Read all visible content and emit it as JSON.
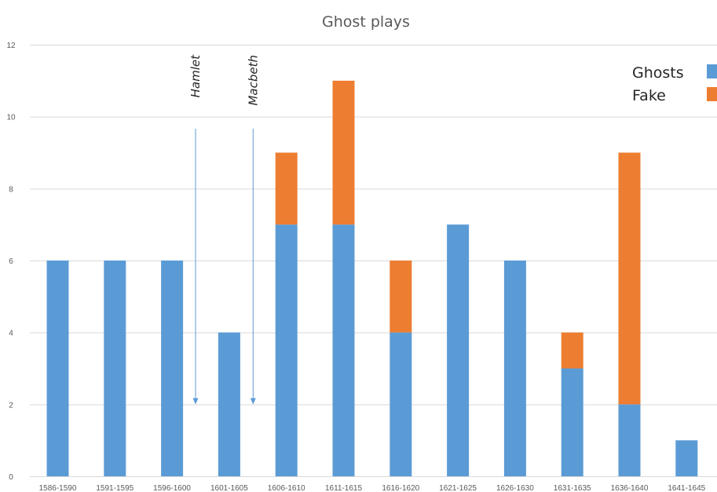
{
  "chart_data": {
    "type": "bar",
    "stacked": true,
    "title": "Ghost plays",
    "xlabel": "",
    "ylabel": "",
    "ylim": [
      0,
      12
    ],
    "yticks": [
      0,
      2,
      4,
      6,
      8,
      10,
      12
    ],
    "grid": true,
    "legend_position": "top-right",
    "categories": [
      "1586-1590",
      "1591-1595",
      "1596-1600",
      "1601-1605",
      "1606-1610",
      "1611-1615",
      "1616-1620",
      "1621-1625",
      "1626-1630",
      "1631-1635",
      "1636-1640",
      "1641-1645"
    ],
    "series": [
      {
        "name": "Ghosts",
        "color": "#5b9bd5",
        "values": [
          6,
          6,
          6,
          4,
          7,
          7,
          4,
          7,
          6,
          3,
          2,
          1
        ]
      },
      {
        "name": "Fake",
        "color": "#ed7d31",
        "values": [
          0,
          0,
          0,
          0,
          2,
          4,
          2,
          0,
          0,
          1,
          7,
          0
        ]
      }
    ],
    "annotations": [
      {
        "text": "Hamlet",
        "x_between": [
          "1596-1600",
          "1601-1605"
        ],
        "arrow_to_y": 2
      },
      {
        "text": "Macbeth",
        "x_between": [
          "1601-1605",
          "1606-1610"
        ],
        "arrow_to_y": 2
      }
    ]
  }
}
